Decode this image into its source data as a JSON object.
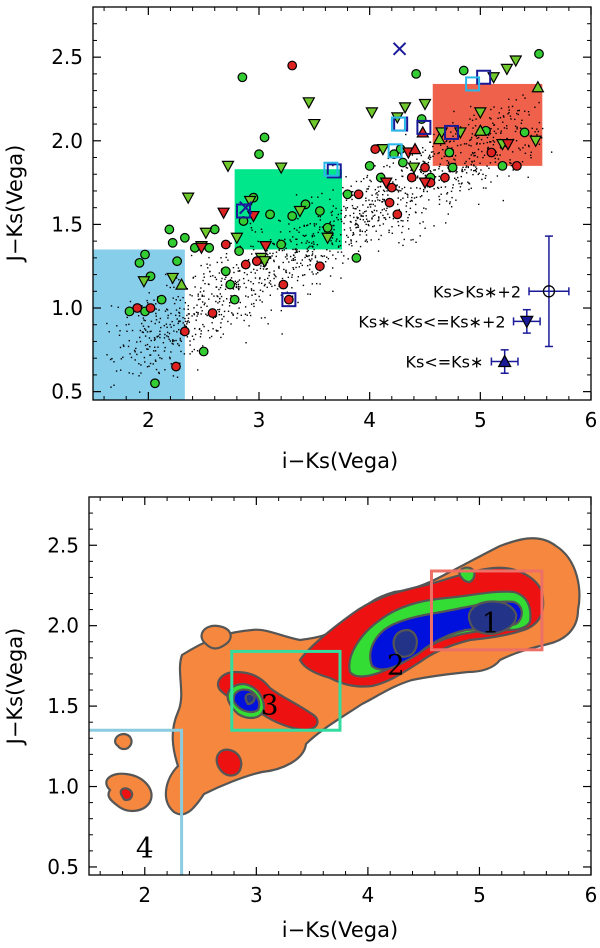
{
  "chart_data": [
    {
      "type": "scatter",
      "xlabel": "i−Ks(Vega)",
      "ylabel": "J−Ks(Vega)",
      "xlim": [
        1.5,
        6.0
      ],
      "ylim": [
        0.45,
        2.8
      ],
      "xticks": [
        "2",
        "3",
        "4",
        "5",
        "6"
      ],
      "yticks": [
        "0.5",
        "1.0",
        "1.5",
        "2.0",
        "2.5"
      ],
      "regions": [
        {
          "name": "box-4",
          "x": [
            1.5,
            2.33
          ],
          "y": [
            0.45,
            1.35
          ],
          "color": "#87ceeb"
        },
        {
          "name": "box-3",
          "x": [
            2.78,
            3.75
          ],
          "y": [
            1.35,
            1.83
          ],
          "color": "#00e68a"
        },
        {
          "name": "box-1",
          "x": [
            4.57,
            5.56
          ],
          "y": [
            1.85,
            2.34
          ],
          "color": "#f0614b"
        }
      ],
      "legend": [
        {
          "label": "Ks>Ks∗+2",
          "marker": "circle"
        },
        {
          "label": "Ks∗<Ks<=Ks∗+2",
          "marker": "triangle-down"
        },
        {
          "label": "Ks<=Ks∗",
          "marker": "triangle-up"
        }
      ],
      "error_bars": [
        {
          "x": 5.62,
          "y": 1.1,
          "xerr": 0.18,
          "yerr": 0.33,
          "marker": "circle"
        },
        {
          "x": 5.42,
          "y": 0.92,
          "xerr": 0.12,
          "yerr": 0.07,
          "marker": "triangle-down"
        },
        {
          "x": 5.22,
          "y": 0.68,
          "xerr": 0.12,
          "yerr": 0.07,
          "marker": "triangle-up"
        }
      ],
      "series": [
        {
          "name": "green-circles",
          "color": "#33cc33",
          "points": [
            [
              1.83,
              0.98
            ],
            [
              1.92,
              1.27
            ],
            [
              1.97,
              1.32
            ],
            [
              2.02,
              1.19
            ],
            [
              1.97,
              0.98
            ],
            [
              2.06,
              0.55
            ],
            [
              2.12,
              1.05
            ],
            [
              2.19,
              1.47
            ],
            [
              2.22,
              1.39
            ],
            [
              2.26,
              1.28
            ],
            [
              2.33,
              1.42
            ],
            [
              2.42,
              1.36
            ],
            [
              2.5,
              0.74
            ],
            [
              2.55,
              1.36
            ],
            [
              2.6,
              1.47
            ],
            [
              2.7,
              1.22
            ],
            [
              2.74,
              1.14
            ],
            [
              2.78,
              1.05
            ],
            [
              2.82,
              1.34
            ],
            [
              2.86,
              1.52
            ],
            [
              2.95,
              1.66
            ],
            [
              3.0,
              1.92
            ],
            [
              3.1,
              1.56
            ],
            [
              3.2,
              1.38
            ],
            [
              3.3,
              1.55
            ],
            [
              3.42,
              1.62
            ],
            [
              3.55,
              1.58
            ],
            [
              3.62,
              1.48
            ],
            [
              3.8,
              1.68
            ],
            [
              3.88,
              1.3
            ],
            [
              4.0,
              1.85
            ],
            [
              4.1,
              1.78
            ],
            [
              4.28,
              1.95
            ],
            [
              4.3,
              1.87
            ],
            [
              4.42,
              2.4
            ],
            [
              4.47,
              2.13
            ],
            [
              4.55,
              1.78
            ],
            [
              4.72,
              1.93
            ],
            [
              4.75,
              1.84
            ],
            [
              4.85,
              2.42
            ],
            [
              5.05,
              2.06
            ],
            [
              5.2,
              1.85
            ],
            [
              5.4,
              2.05
            ],
            [
              5.53,
              2.52
            ],
            [
              2.85,
              2.38
            ],
            [
              3.05,
              2.02
            ],
            [
              4.22,
              1.92
            ]
          ]
        },
        {
          "name": "green-triangles-down",
          "color": "#6fc92c",
          "points": [
            [
              1.96,
              1.16
            ],
            [
              2.22,
              1.18
            ],
            [
              2.36,
              1.66
            ],
            [
              2.48,
              1.37
            ],
            [
              2.52,
              1.45
            ],
            [
              2.72,
              1.85
            ],
            [
              2.8,
              1.42
            ],
            [
              2.92,
              1.64
            ],
            [
              3.02,
              1.3
            ],
            [
              3.05,
              1.28
            ],
            [
              3.2,
              1.84
            ],
            [
              3.37,
              1.58
            ],
            [
              3.45,
              2.23
            ],
            [
              3.5,
              2.1
            ],
            [
              3.62,
              1.42
            ],
            [
              4.02,
              2.17
            ],
            [
              4.12,
              1.95
            ],
            [
              4.25,
              2.14
            ],
            [
              4.32,
              2.2
            ],
            [
              4.4,
              1.84
            ],
            [
              4.5,
              2.22
            ],
            [
              4.65,
              2.05
            ],
            [
              4.82,
              2.05
            ],
            [
              5.0,
              2.17
            ],
            [
              5.12,
              2.38
            ],
            [
              5.2,
              1.98
            ],
            [
              5.24,
              2.43
            ],
            [
              5.32,
              2.48
            ],
            [
              5.5,
              2.0
            ]
          ]
        },
        {
          "name": "green-triangles-up",
          "color": "#6fc92c",
          "points": [
            [
              2.3,
              1.14
            ],
            [
              4.63,
              2.01
            ],
            [
              5.0,
              2.06
            ],
            [
              5.52,
              2.32
            ]
          ]
        },
        {
          "name": "red-circles",
          "color": "#dd2222",
          "points": [
            [
              1.9,
              1.0
            ],
            [
              2.02,
              1.0
            ],
            [
              2.25,
              0.65
            ],
            [
              2.33,
              0.86
            ],
            [
              2.58,
              0.97
            ],
            [
              2.7,
              1.38
            ],
            [
              2.88,
              1.26
            ],
            [
              2.98,
              1.28
            ],
            [
              3.22,
              1.14
            ],
            [
              3.3,
              2.45
            ],
            [
              3.55,
              1.25
            ],
            [
              3.9,
              1.68
            ],
            [
              4.05,
              1.95
            ],
            [
              4.18,
              1.63
            ],
            [
              4.2,
              1.72
            ],
            [
              4.25,
              1.56
            ],
            [
              4.38,
              1.78
            ],
            [
              4.5,
              1.84
            ],
            [
              4.55,
              1.75
            ],
            [
              4.68,
              1.78
            ],
            [
              5.1,
              1.93
            ],
            [
              5.33,
              1.85
            ],
            [
              3.27,
              1.05
            ]
          ]
        },
        {
          "name": "red-triangles-down",
          "color": "#dd2222",
          "points": [
            [
              2.48,
              1.36
            ],
            [
              2.68,
              1.57
            ],
            [
              2.95,
              1.55
            ],
            [
              3.06,
              1.37
            ],
            [
              4.15,
              1.75
            ],
            [
              4.35,
              1.93
            ],
            [
              4.5,
              1.75
            ],
            [
              5.25,
              1.98
            ]
          ]
        },
        {
          "name": "red-triangles-up",
          "color": "#dd2222",
          "points": [
            [
              4.41,
              1.95
            ],
            [
              4.48,
              2.05
            ]
          ]
        },
        {
          "name": "blue-squares",
          "color": "#1a1a99",
          "points": [
            [
              3.27,
              1.05
            ],
            [
              3.68,
              1.82
            ],
            [
              4.28,
              2.1
            ],
            [
              4.49,
              2.08
            ],
            [
              4.74,
              2.05
            ],
            [
              5.03,
              2.38
            ],
            [
              2.86,
              1.58
            ]
          ]
        },
        {
          "name": "cyan-squares",
          "color": "#29b7ea",
          "points": [
            [
              4.23,
              1.94
            ],
            [
              4.26,
              2.1
            ],
            [
              4.93,
              2.34
            ],
            [
              3.65,
              1.83
            ]
          ]
        },
        {
          "name": "blue-x",
          "color": "#1a1a99",
          "points": [
            [
              4.27,
              2.55
            ],
            [
              2.88,
              1.6
            ]
          ]
        }
      ]
    },
    {
      "type": "contour",
      "xlabel": "i−Ks(Vega)",
      "ylabel": "J−Ks(Vega)",
      "xlim": [
        1.5,
        6.0
      ],
      "ylim": [
        0.45,
        2.8
      ],
      "xticks": [
        "2",
        "3",
        "4",
        "5",
        "6"
      ],
      "yticks": [
        "0.5",
        "1.0",
        "1.5",
        "2.0",
        "2.5"
      ],
      "levels": [
        {
          "name": "level-1",
          "color": "#f5883e"
        },
        {
          "name": "level-2",
          "color": "#ee1111"
        },
        {
          "name": "level-3",
          "color": "#33dd33"
        },
        {
          "name": "level-4",
          "color": "#0011dd"
        },
        {
          "name": "level-5",
          "color": "#223388"
        }
      ],
      "boxes": [
        {
          "label": "1",
          "x": [
            4.57,
            5.56
          ],
          "y": [
            1.85,
            2.34
          ],
          "color": "#ee6f66"
        },
        {
          "label": "2",
          "x": null,
          "y": null,
          "color": null
        },
        {
          "label": "3",
          "x": [
            2.78,
            3.75
          ],
          "y": [
            1.35,
            1.84
          ],
          "color": "#33dda0"
        },
        {
          "label": "4",
          "x": [
            1.5,
            2.33
          ],
          "y": [
            0.45,
            1.35
          ],
          "color": "#8ccce0"
        }
      ],
      "region_labels": [
        "1",
        "2",
        "3",
        "4"
      ]
    }
  ]
}
